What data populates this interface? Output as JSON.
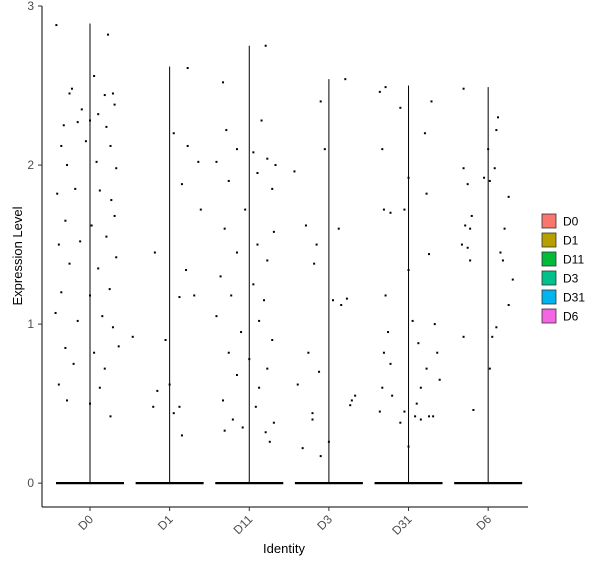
{
  "chart_data": {
    "type": "violin",
    "xlabel": "Identity",
    "ylabel": "Expression Level",
    "categories": [
      "D0",
      "D1",
      "D11",
      "D3",
      "D31",
      "D6"
    ],
    "ylim": [
      -0.15,
      3.0
    ],
    "yticks": [
      0,
      1,
      2,
      3
    ],
    "legend": {
      "position": "right",
      "entries": [
        "D0",
        "D1",
        "D11",
        "D3",
        "D31",
        "D6"
      ]
    },
    "grid": false,
    "series": [
      {
        "name": "D0",
        "color": "#F8766D",
        "max": 2.89,
        "points": [
          [
            -0.41,
            2.88
          ],
          [
            0.22,
            2.82
          ],
          [
            0.05,
            2.56
          ],
          [
            -0.25,
            2.45
          ],
          [
            -0.22,
            2.48
          ],
          [
            0.18,
            2.44
          ],
          [
            0.28,
            2.45
          ],
          [
            -0.1,
            2.35
          ],
          [
            0.1,
            2.32
          ],
          [
            0.3,
            2.38
          ],
          [
            -0.32,
            2.25
          ],
          [
            -0.15,
            2.27
          ],
          [
            0.0,
            2.28
          ],
          [
            0.2,
            2.24
          ],
          [
            -0.35,
            2.12
          ],
          [
            -0.05,
            2.15
          ],
          [
            0.25,
            2.12
          ],
          [
            -0.28,
            2.0
          ],
          [
            0.08,
            2.02
          ],
          [
            0.32,
            1.98
          ],
          [
            -0.4,
            1.82
          ],
          [
            -0.18,
            1.85
          ],
          [
            0.12,
            1.84
          ],
          [
            0.26,
            1.78
          ],
          [
            -0.3,
            1.65
          ],
          [
            0.02,
            1.62
          ],
          [
            0.3,
            1.68
          ],
          [
            -0.38,
            1.5
          ],
          [
            -0.12,
            1.52
          ],
          [
            0.2,
            1.55
          ],
          [
            -0.25,
            1.38
          ],
          [
            0.1,
            1.35
          ],
          [
            0.32,
            1.42
          ],
          [
            -0.35,
            1.2
          ],
          [
            0.0,
            1.18
          ],
          [
            0.24,
            1.22
          ],
          [
            -0.42,
            1.07
          ],
          [
            -0.15,
            1.02
          ],
          [
            0.15,
            1.05
          ],
          [
            0.28,
            0.98
          ],
          [
            -0.3,
            0.85
          ],
          [
            0.05,
            0.82
          ],
          [
            0.35,
            0.86
          ],
          [
            -0.2,
            0.75
          ],
          [
            0.18,
            0.72
          ],
          [
            -0.38,
            0.62
          ],
          [
            0.12,
            0.6
          ],
          [
            -0.28,
            0.52
          ],
          [
            0.0,
            0.5
          ],
          [
            0.25,
            0.42
          ]
        ]
      },
      {
        "name": "D1",
        "color": "#B79F00",
        "max": 2.62,
        "points": [
          [
            0.22,
            2.61
          ],
          [
            0.05,
            2.2
          ],
          [
            0.22,
            2.12
          ],
          [
            0.35,
            2.02
          ],
          [
            0.15,
            1.88
          ],
          [
            -0.18,
            1.45
          ],
          [
            0.38,
            1.72
          ],
          [
            0.2,
            1.34
          ],
          [
            0.12,
            1.17
          ],
          [
            0.3,
            1.18
          ],
          [
            -0.05,
            0.9
          ],
          [
            0.0,
            0.62
          ],
          [
            -0.15,
            0.58
          ],
          [
            -0.2,
            0.48
          ],
          [
            0.05,
            0.44
          ],
          [
            0.12,
            0.48
          ],
          [
            -0.45,
            0.92
          ],
          [
            0.15,
            0.3
          ]
        ]
      },
      {
        "name": "D11",
        "color": "#00BA38",
        "max": 2.75,
        "points": [
          [
            0.2,
            2.75
          ],
          [
            -0.32,
            2.52
          ],
          [
            0.15,
            2.28
          ],
          [
            -0.28,
            2.22
          ],
          [
            0.05,
            2.08
          ],
          [
            0.22,
            2.04
          ],
          [
            -0.15,
            2.1
          ],
          [
            0.32,
            2.0
          ],
          [
            -0.4,
            2.02
          ],
          [
            0.1,
            1.95
          ],
          [
            -0.25,
            1.9
          ],
          [
            0.28,
            1.85
          ],
          [
            -0.05,
            1.72
          ],
          [
            0.3,
            1.58
          ],
          [
            -0.3,
            1.6
          ],
          [
            0.1,
            1.5
          ],
          [
            -0.15,
            1.45
          ],
          [
            0.22,
            1.4
          ],
          [
            -0.35,
            1.3
          ],
          [
            0.05,
            1.25
          ],
          [
            -0.22,
            1.18
          ],
          [
            0.18,
            1.15
          ],
          [
            -0.4,
            1.05
          ],
          [
            0.12,
            1.02
          ],
          [
            -0.1,
            0.95
          ],
          [
            0.28,
            0.9
          ],
          [
            -0.25,
            0.82
          ],
          [
            0.0,
            0.78
          ],
          [
            0.22,
            0.72
          ],
          [
            -0.15,
            0.68
          ],
          [
            0.12,
            0.6
          ],
          [
            -0.32,
            0.52
          ],
          [
            0.08,
            0.48
          ],
          [
            -0.2,
            0.4
          ],
          [
            0.3,
            0.38
          ],
          [
            -0.08,
            0.35
          ],
          [
            0.2,
            0.32
          ],
          [
            -0.3,
            0.33
          ],
          [
            0.25,
            0.26
          ]
        ]
      },
      {
        "name": "D3",
        "color": "#00C08B",
        "max": 2.54,
        "points": [
          [
            0.2,
            2.54
          ],
          [
            -0.1,
            2.4
          ],
          [
            -0.05,
            2.1
          ],
          [
            -0.42,
            1.96
          ],
          [
            0.12,
            1.6
          ],
          [
            -0.28,
            1.62
          ],
          [
            -0.18,
            1.38
          ],
          [
            -0.15,
            1.5
          ],
          [
            0.05,
            1.15
          ],
          [
            0.15,
            1.12
          ],
          [
            0.22,
            1.16
          ],
          [
            -0.25,
            0.82
          ],
          [
            -0.12,
            0.7
          ],
          [
            -0.38,
            0.62
          ],
          [
            0.28,
            0.52
          ],
          [
            0.32,
            0.55
          ],
          [
            0.26,
            0.49
          ],
          [
            -0.2,
            0.44
          ],
          [
            -0.2,
            0.4
          ],
          [
            0.0,
            0.26
          ],
          [
            -0.32,
            0.22
          ],
          [
            -0.1,
            0.17
          ]
        ]
      },
      {
        "name": "D31",
        "color": "#00B4EF",
        "max": 2.5,
        "points": [
          [
            -0.35,
            2.46
          ],
          [
            -0.28,
            2.49
          ],
          [
            -0.1,
            2.36
          ],
          [
            0.28,
            2.4
          ],
          [
            0.2,
            2.2
          ],
          [
            -0.32,
            2.1
          ],
          [
            0.22,
            1.82
          ],
          [
            0.0,
            1.92
          ],
          [
            -0.3,
            1.72
          ],
          [
            -0.22,
            1.7
          ],
          [
            -0.05,
            1.72
          ],
          [
            0.25,
            1.44
          ],
          [
            0.0,
            1.34
          ],
          [
            -0.28,
            1.18
          ],
          [
            0.05,
            1.02
          ],
          [
            0.32,
            1.0
          ],
          [
            -0.25,
            0.95
          ],
          [
            0.12,
            0.88
          ],
          [
            -0.3,
            0.82
          ],
          [
            0.35,
            0.82
          ],
          [
            -0.22,
            0.75
          ],
          [
            0.22,
            0.72
          ],
          [
            -0.32,
            0.6
          ],
          [
            0.15,
            0.6
          ],
          [
            0.38,
            0.65
          ],
          [
            -0.2,
            0.55
          ],
          [
            0.1,
            0.5
          ],
          [
            -0.05,
            0.45
          ],
          [
            0.25,
            0.42
          ],
          [
            -0.35,
            0.45
          ],
          [
            0.08,
            0.42
          ],
          [
            0.3,
            0.42
          ],
          [
            -0.1,
            0.38
          ],
          [
            0.15,
            0.4
          ],
          [
            0.0,
            0.23
          ]
        ]
      },
      {
        "name": "D6",
        "color": "#F564E3",
        "max": 2.49,
        "points": [
          [
            -0.3,
            2.48
          ],
          [
            0.12,
            2.3
          ],
          [
            0.1,
            2.22
          ],
          [
            0.0,
            2.1
          ],
          [
            0.08,
            1.98
          ],
          [
            -0.3,
            1.98
          ],
          [
            -0.25,
            1.88
          ],
          [
            -0.05,
            1.92
          ],
          [
            0.02,
            1.9
          ],
          [
            0.25,
            1.8
          ],
          [
            -0.2,
            1.68
          ],
          [
            -0.22,
            1.6
          ],
          [
            -0.28,
            1.62
          ],
          [
            -0.32,
            1.5
          ],
          [
            0.2,
            1.6
          ],
          [
            -0.25,
            1.48
          ],
          [
            0.15,
            1.45
          ],
          [
            0.18,
            1.4
          ],
          [
            0.3,
            1.28
          ],
          [
            -0.22,
            1.4
          ],
          [
            0.1,
            0.98
          ],
          [
            -0.3,
            0.92
          ],
          [
            0.05,
            0.92
          ],
          [
            0.25,
            1.12
          ],
          [
            0.02,
            0.72
          ],
          [
            -0.18,
            0.46
          ]
        ]
      }
    ]
  }
}
